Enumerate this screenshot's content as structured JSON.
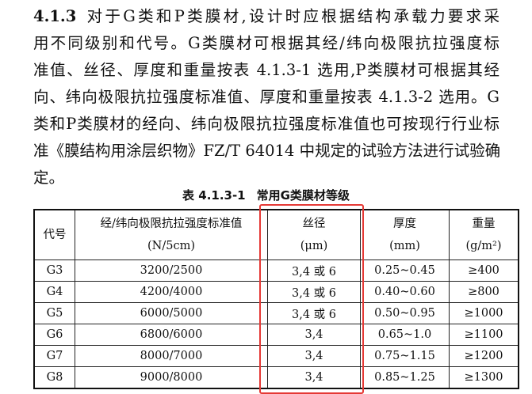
{
  "paragraph": {
    "section_number": "4.1.3",
    "lines": [
      "对于G类和P类膜材,设计时应根据结构承载力要求采",
      "用不同级别和代号。G类膜材可根据其经/纬向极限抗拉强度标",
      "准值、丝径、厚度和重量按表 4.1.3-1 选用,P类膜材可根据其经",
      "向、纬向极限抗拉强度标准值、厚度和重量按表 4.1.3-2 选用。G",
      "类和P类膜材的经向、纬向极限抗拉强度标准值也可按现行行业标",
      "准《膜结构用涂层织物》FZ/T 64014 中规定的试验方法进行试验确",
      "定。"
    ]
  },
  "table": {
    "caption_number": "表 4.1.3-1",
    "caption_title": "常用G类膜材等级",
    "headers": [
      {
        "label": "代号",
        "unit": ""
      },
      {
        "label": "经/纬向极限抗拉强度标准值",
        "unit": "(N/5cm)"
      },
      {
        "label": "丝径",
        "unit": "(μm)"
      },
      {
        "label": "厚度",
        "unit": "(mm)"
      },
      {
        "label": "重量",
        "unit": "(g/m²)"
      }
    ],
    "rows": [
      [
        "G3",
        "3200/2500",
        "3,4 或 6",
        "0.25~0.45",
        "≥400"
      ],
      [
        "G4",
        "4200/4000",
        "3,4 或 6",
        "0.40~0.60",
        "≥800"
      ],
      [
        "G5",
        "6000/5000",
        "3,4 或 6",
        "0.50~0.95",
        "≥1000"
      ],
      [
        "G6",
        "6800/6000",
        "3,4",
        "0.65~1.0",
        "≥1100"
      ],
      [
        "G7",
        "8000/7000",
        "3,4",
        "0.75~1.15",
        "≥1200"
      ],
      [
        "G8",
        "9000/8000",
        "3,4",
        "0.85~1.25",
        "≥1300"
      ]
    ]
  },
  "highlight": {
    "column": "丝径",
    "color": "#e53935"
  }
}
